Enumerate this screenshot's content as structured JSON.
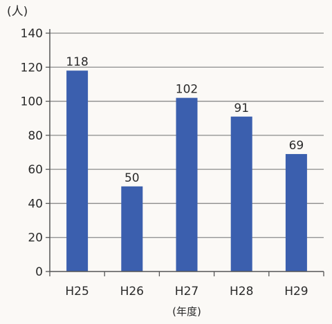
{
  "chart_data": {
    "type": "bar",
    "categories": [
      "H25",
      "H26",
      "H27",
      "H28",
      "H29"
    ],
    "values": [
      118,
      50,
      102,
      91,
      69
    ],
    "data_labels": [
      "118",
      "50",
      "102",
      "91",
      "69"
    ],
    "yunit": "(人)",
    "xlabel": "(年度)",
    "ylim": [
      0,
      140
    ],
    "yticks": [
      0,
      20,
      40,
      60,
      80,
      100,
      120,
      140
    ],
    "grid": true,
    "bar_color": "#3b5fae",
    "grid_color": "#8a8a8a",
    "axis_color": "#555555"
  }
}
